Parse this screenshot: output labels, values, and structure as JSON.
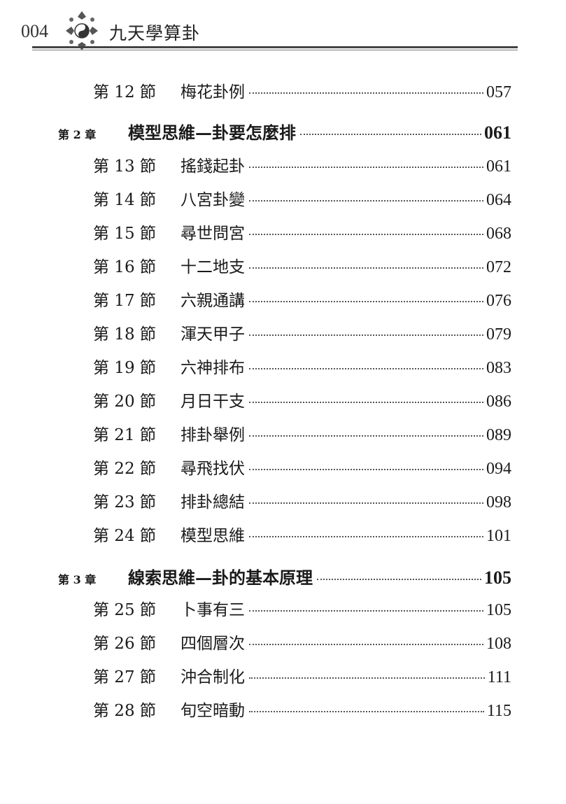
{
  "header": {
    "page_number": "004",
    "book_title": "九天學算卦"
  },
  "toc": [
    {
      "kind": "section",
      "label": "第 12 節",
      "title": "梅花卦例",
      "page": "057"
    },
    {
      "kind": "chapter",
      "label": "第 2 章",
      "title": "模型思維—卦要怎麼排",
      "page": "061"
    },
    {
      "kind": "section",
      "label": "第 13 節",
      "title": "搖錢起卦",
      "page": "061"
    },
    {
      "kind": "section",
      "label": "第 14 節",
      "title": "八宮卦變",
      "page": "064"
    },
    {
      "kind": "section",
      "label": "第 15 節",
      "title": "尋世問宮",
      "page": "068"
    },
    {
      "kind": "section",
      "label": "第 16 節",
      "title": "十二地支",
      "page": "072"
    },
    {
      "kind": "section",
      "label": "第 17 節",
      "title": "六親通講",
      "page": "076"
    },
    {
      "kind": "section",
      "label": "第 18 節",
      "title": "渾天甲子",
      "page": "079"
    },
    {
      "kind": "section",
      "label": "第 19 節",
      "title": "六神排布",
      "page": "083"
    },
    {
      "kind": "section",
      "label": "第 20 節",
      "title": "月日干支",
      "page": "086"
    },
    {
      "kind": "section",
      "label": "第 21 節",
      "title": "排卦舉例",
      "page": "089"
    },
    {
      "kind": "section",
      "label": "第 22 節",
      "title": "尋飛找伏",
      "page": "094"
    },
    {
      "kind": "section",
      "label": "第 23 節",
      "title": "排卦總結",
      "page": "098"
    },
    {
      "kind": "section",
      "label": "第 24 節",
      "title": "模型思維",
      "page": "101"
    },
    {
      "kind": "chapter",
      "label": "第 3 章",
      "title": "線索思維—卦的基本原理",
      "page": "105"
    },
    {
      "kind": "section",
      "label": "第 25 節",
      "title": "卜事有三",
      "page": "105"
    },
    {
      "kind": "section",
      "label": "第 26 節",
      "title": "四個層次",
      "page": "108"
    },
    {
      "kind": "section",
      "label": "第 27 節",
      "title": "沖合制化",
      "page": "111"
    },
    {
      "kind": "section",
      "label": "第 28 節",
      "title": "旬空暗動",
      "page": "115"
    }
  ]
}
